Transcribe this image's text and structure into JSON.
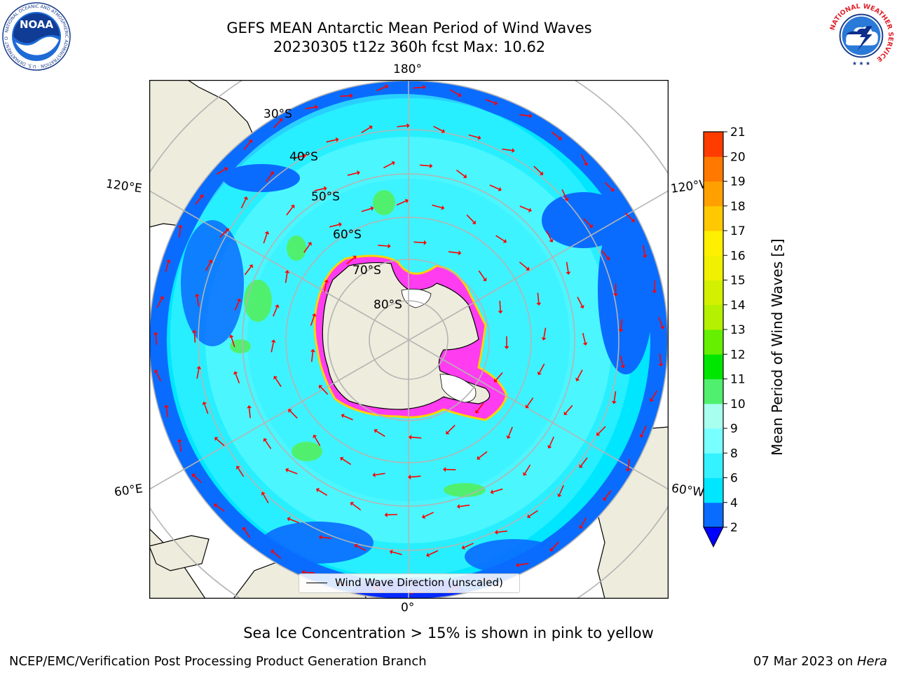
{
  "title": {
    "line1": "GEFS MEAN Antarctic Mean Period of Wind Waves",
    "line2": "20230305 t12z 360h fcst   Max: 10.62"
  },
  "logos": {
    "noaa": {
      "center_text": "NOAA",
      "ring_text": "NATIONAL OCEANIC AND ATMOSPHERIC ADMINISTRATION · U.S. DEPARTMENT OF COMMERCE"
    },
    "nws": {
      "ring_text": "NATIONAL WEATHER SERVICE"
    }
  },
  "map": {
    "projection": "south polar stereographic",
    "longitude_labels": {
      "top": "180°",
      "bottom": "0°",
      "upper_left": "120°E",
      "upper_right": "120°W",
      "lower_left": "60°E",
      "lower_right": "60°W"
    },
    "latitude_labels": [
      "30°S",
      "40°S",
      "50°S",
      "60°S",
      "70°S",
      "80°S"
    ],
    "legend": {
      "label": "Wind Wave Direction (unscaled)"
    },
    "colors": {
      "land": "#eeecdc",
      "ice_pink": "#ff3cf0",
      "ice_yellow": "#ffd200",
      "arrow": "#ff0000",
      "grid": "#b4b4b4"
    }
  },
  "colorbar": {
    "label": "Mean Period of Wind Waves [s]",
    "ticks": [
      "2",
      "4",
      "6",
      "8",
      "9",
      "10",
      "11",
      "12",
      "13",
      "14",
      "15",
      "16",
      "17",
      "18",
      "19",
      "20",
      "21"
    ],
    "band_colors": [
      "#0a6cff",
      "#00e6ff",
      "#34f2ff",
      "#78ffff",
      "#a8fff0",
      "#50f06e",
      "#00e600",
      "#64f000",
      "#b4f000",
      "#d2f000",
      "#f0f000",
      "#fff000",
      "#ffc800",
      "#ffa000",
      "#ff7800",
      "#ff3c00",
      "#ff0000"
    ],
    "under_color": "#0000ff"
  },
  "caption": "Sea Ice Concentration > 15% is shown in pink to yellow",
  "footer": {
    "left": "NCEP/EMC/Verification Post Processing Product Generation Branch",
    "right_prefix": "07 Mar 2023 on ",
    "right_host": "Hera"
  }
}
